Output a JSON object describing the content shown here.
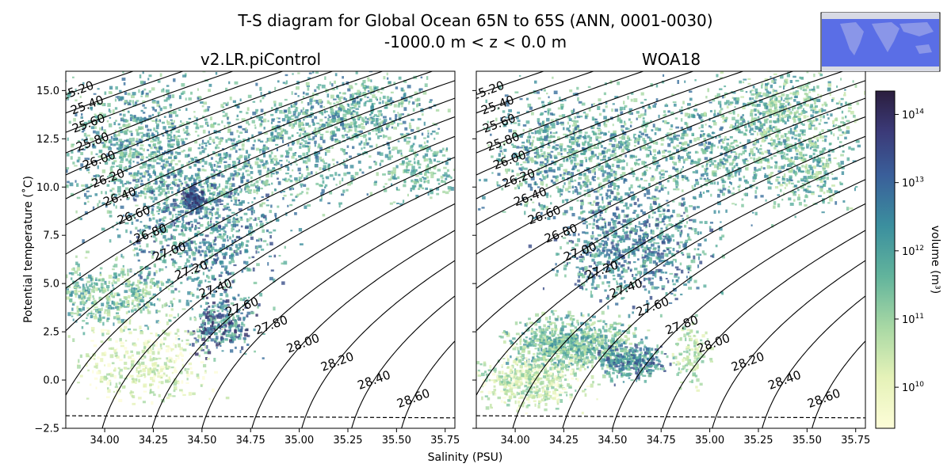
{
  "figure": {
    "title_line1": "T-S diagram for Global Ocean 65N to 65S (ANN, 0001-0030)",
    "title_line2": "-1000.0 m < z < 0.0 m"
  },
  "colors": {
    "density_hi": "#2b1e3e",
    "density_mid": "#3b7f9a",
    "density_low": "#a8d8a4",
    "density_min": "#fdfdd8",
    "contour": "#000000",
    "map_ocean": "#5a6ee6",
    "map_land": "#c8ccd8"
  },
  "chart_data": [
    {
      "type": "heatmap",
      "panel": "left",
      "title": "v2.LR.piControl",
      "xlabel": "Salinity (PSU)",
      "ylabel": "Potential temperature (˚C)",
      "xlim": [
        33.8,
        35.8
      ],
      "ylim": [
        -2.5,
        16
      ],
      "x_ticks": [
        "34.00",
        "34.25",
        "34.50",
        "34.75",
        "35.00",
        "35.25",
        "35.50",
        "35.75"
      ],
      "y_ticks": [
        "−2.5",
        "0.0",
        "2.5",
        "5.0",
        "7.5",
        "10.0",
        "12.5",
        "15.0"
      ],
      "freezing_line": {
        "s": [
          33.8,
          35.8
        ],
        "t": [
          -1.85,
          -1.96
        ]
      },
      "density_contours": [
        "25.20",
        "25.40",
        "25.60",
        "25.80",
        "26.00",
        "26.20",
        "26.40",
        "26.60",
        "26.80",
        "27.00",
        "27.20",
        "27.40",
        "27.60",
        "27.80",
        "28.00",
        "28.20",
        "28.40",
        "28.60"
      ]
    },
    {
      "type": "heatmap",
      "panel": "right",
      "title": "WOA18",
      "xlabel": "Salinity (PSU)",
      "xlim": [
        33.8,
        35.8
      ],
      "ylim": [
        -2.5,
        16
      ],
      "x_ticks": [
        "34.00",
        "34.25",
        "34.50",
        "34.75",
        "35.00",
        "35.25",
        "35.50",
        "35.75"
      ],
      "freezing_line": {
        "s": [
          33.8,
          35.8
        ],
        "t": [
          -1.85,
          -1.96
        ]
      },
      "density_contours": [
        "25.20",
        "25.40",
        "25.60",
        "25.80",
        "26.00",
        "26.20",
        "26.40",
        "26.60",
        "26.80",
        "27.00",
        "27.20",
        "27.40",
        "27.60",
        "27.80",
        "28.00",
        "28.20",
        "28.40",
        "28.60"
      ]
    }
  ],
  "colorbar": {
    "label": "volume (m³)",
    "scale": "log",
    "ticks": [
      {
        "base": "10",
        "exp": "14",
        "value": 100000000000000.0
      },
      {
        "base": "10",
        "exp": "13",
        "value": 10000000000000.0
      },
      {
        "base": "10",
        "exp": "12",
        "value": 1000000000000.0
      },
      {
        "base": "10",
        "exp": "11",
        "value": 100000000000.0
      },
      {
        "base": "10",
        "exp": "10",
        "value": 10000000000.0
      }
    ],
    "range": [
      2500000000.0,
      220000000000000.0
    ]
  },
  "inset_map": {
    "description": "global-map-region-inset"
  }
}
